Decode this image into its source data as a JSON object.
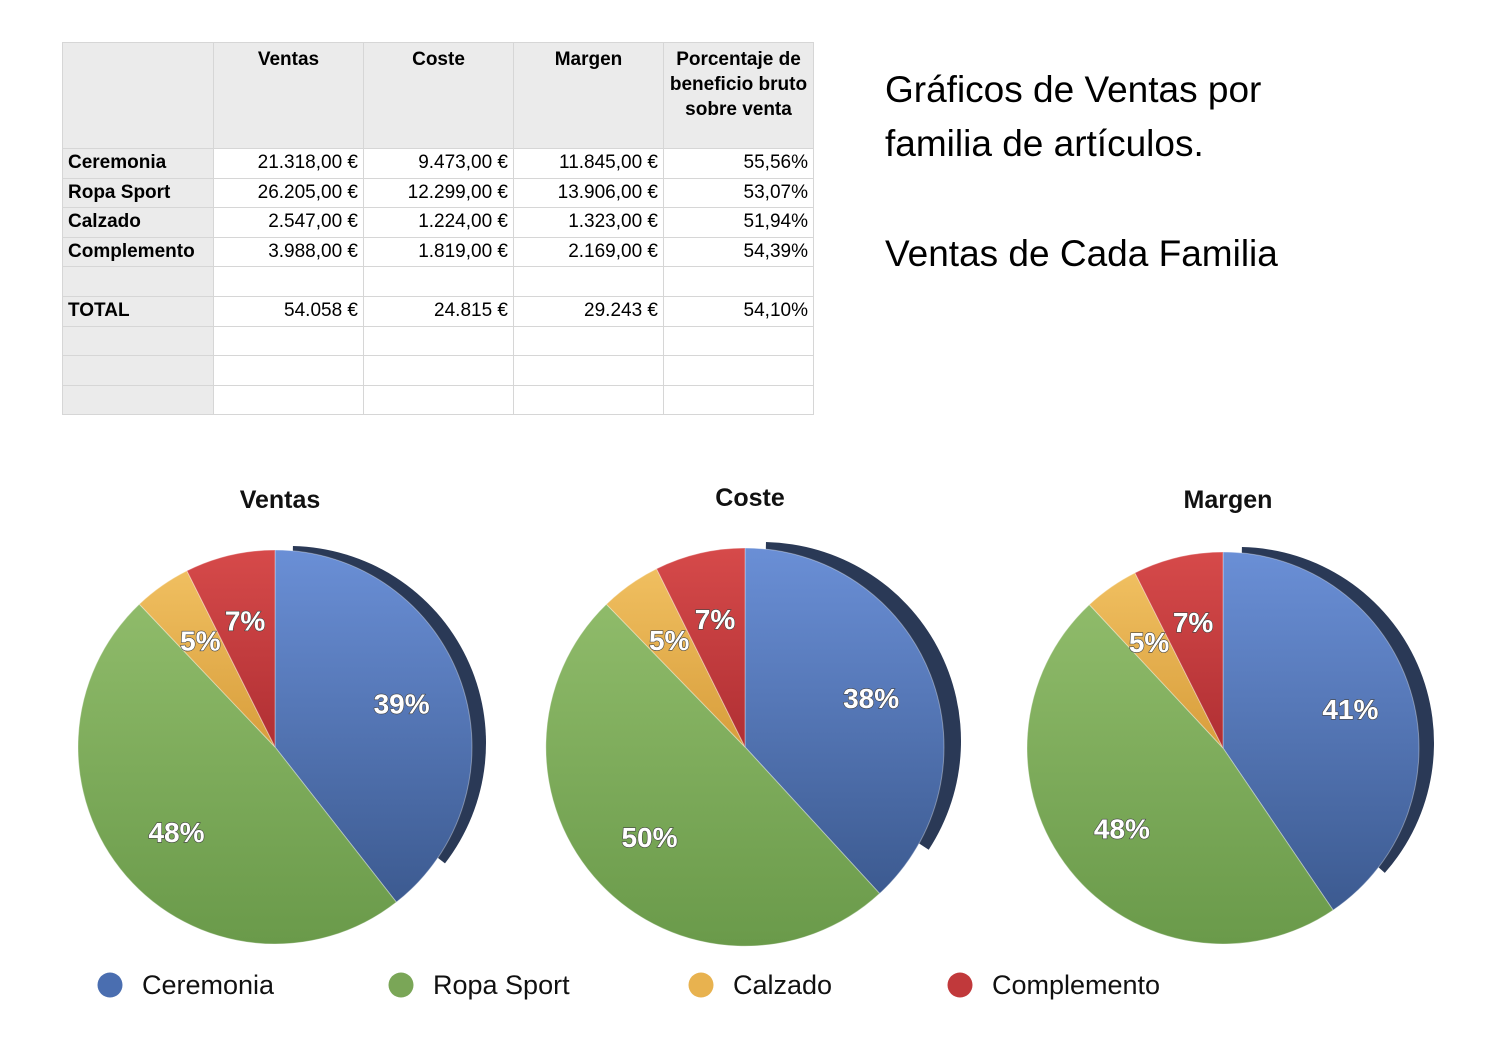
{
  "headings": {
    "line1": "Gráficos de Ventas por familia de artículos.",
    "line2": "Ventas de Cada Familia"
  },
  "table": {
    "columns": [
      "",
      "Ventas",
      "Coste",
      "Margen",
      "Porcentaje de beneficio bruto sobre venta"
    ],
    "rows": [
      [
        "Ceremonia",
        "21.318,00 €",
        "9.473,00 €",
        "11.845,00 €",
        "55,56%"
      ],
      [
        "Ropa Sport",
        "26.205,00 €",
        "12.299,00 €",
        "13.906,00 €",
        "53,07%"
      ],
      [
        "Calzado",
        "2.547,00 €",
        "1.224,00 €",
        "1.323,00 €",
        "51,94%"
      ],
      [
        "Complemento",
        "3.988,00 €",
        "1.819,00 €",
        "2.169,00 €",
        "54,39%"
      ],
      [
        "",
        "",
        "",
        "",
        ""
      ],
      [
        "TOTAL",
        "54.058 €",
        "24.815 €",
        "29.243 €",
        "54,10%"
      ],
      [
        "",
        "",
        "",
        "",
        ""
      ],
      [
        "",
        "",
        "",
        "",
        ""
      ],
      [
        "",
        "",
        "",
        "",
        ""
      ]
    ]
  },
  "chart_data": [
    {
      "type": "pie",
      "title": "Ventas",
      "categories": [
        "Ceremonia",
        "Ropa Sport",
        "Calzado",
        "Complemento"
      ],
      "values": [
        21318,
        26205,
        2547,
        3988
      ],
      "labels": [
        "39%",
        "48%",
        "5%",
        "7%"
      ]
    },
    {
      "type": "pie",
      "title": "Coste",
      "categories": [
        "Ceremonia",
        "Ropa Sport",
        "Calzado",
        "Complemento"
      ],
      "values": [
        9473,
        12299,
        1224,
        1819
      ],
      "labels": [
        "38%",
        "50%",
        "5%",
        "7%"
      ]
    },
    {
      "type": "pie",
      "title": "Margen",
      "categories": [
        "Ceremonia",
        "Ropa Sport",
        "Calzado",
        "Complemento"
      ],
      "values": [
        11845,
        13906,
        1323,
        2169
      ],
      "labels": [
        "41%",
        "48%",
        "5%",
        "7%"
      ]
    }
  ],
  "legend": {
    "items": [
      {
        "label": "Ceremonia",
        "color": "#4a6eb0"
      },
      {
        "label": "Ropa Sport",
        "color": "#7aa657"
      },
      {
        "label": "Calzado",
        "color": "#e8b24f"
      },
      {
        "label": "Complemento",
        "color": "#c1393b"
      }
    ],
    "placement": "bottom"
  }
}
